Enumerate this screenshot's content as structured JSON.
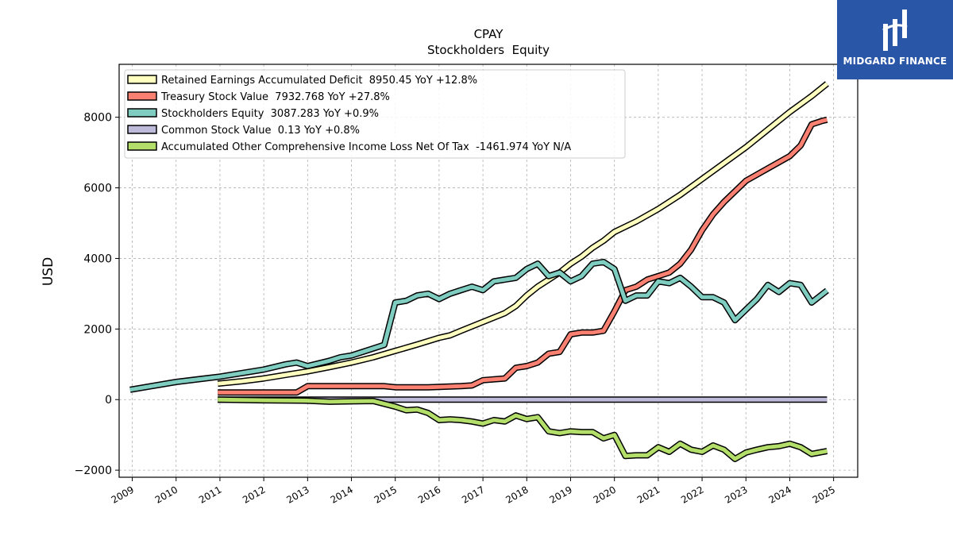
{
  "chart_data": {
    "type": "line",
    "title": "CPAY",
    "subtitle": "Stockholders  Equity",
    "ylabel": "USD",
    "xlabel": "",
    "xlim": [
      2008.7,
      2025.55
    ],
    "ylim": [
      -2200,
      9500
    ],
    "yticks": [
      -2000,
      0,
      2000,
      4000,
      6000,
      8000
    ],
    "ytick_labels": [
      "−2000",
      "0",
      "2000",
      "4000",
      "6000",
      "8000"
    ],
    "xticks": [
      2009,
      2010,
      2011,
      2012,
      2013,
      2014,
      2015,
      2016,
      2017,
      2018,
      2019,
      2020,
      2021,
      2022,
      2023,
      2024,
      2025
    ],
    "xtick_labels": [
      "2009",
      "2010",
      "2011",
      "2012",
      "2013",
      "2014",
      "2015",
      "2016",
      "2017",
      "2018",
      "2019",
      "2020",
      "2021",
      "2022",
      "2023",
      "2024",
      "2025"
    ],
    "grid": true,
    "legend_position": "top-left",
    "series": [
      {
        "name": "Retained Earnings Accumulated Deficit  8950.45 YoY +12.8%",
        "color": "#ffffc0",
        "x": [
          2010.95,
          2011.5,
          2012.0,
          2012.5,
          2013.0,
          2013.5,
          2014.0,
          2014.5,
          2015.0,
          2015.5,
          2016.0,
          2016.25,
          2016.5,
          2017.0,
          2017.5,
          2017.75,
          2018.0,
          2018.25,
          2018.5,
          2018.75,
          2019.0,
          2019.25,
          2019.5,
          2019.75,
          2020.0,
          2020.5,
          2021.0,
          2021.5,
          2022.0,
          2022.5,
          2023.0,
          2023.5,
          2024.0,
          2024.5,
          2024.85
        ],
        "y": [
          450,
          520,
          600,
          700,
          800,
          920,
          1050,
          1200,
          1380,
          1560,
          1750,
          1820,
          1950,
          2200,
          2450,
          2650,
          2950,
          3200,
          3400,
          3600,
          3850,
          4050,
          4300,
          4500,
          4750,
          5050,
          5400,
          5800,
          6250,
          6700,
          7150,
          7650,
          8150,
          8600,
          8950
        ]
      },
      {
        "name": "Treasury Stock Value  7932.768 YoY +27.8%",
        "color": "#fa8072",
        "x": [
          2010.95,
          2012.75,
          2013.0,
          2014.75,
          2015.0,
          2015.75,
          2016.0,
          2016.5,
          2016.75,
          2017.0,
          2017.5,
          2017.75,
          2018.0,
          2018.25,
          2018.5,
          2018.75,
          2019.0,
          2019.25,
          2019.5,
          2019.75,
          2020.0,
          2020.25,
          2020.5,
          2020.75,
          2021.0,
          2021.25,
          2021.5,
          2021.75,
          2022.0,
          2022.25,
          2022.5,
          2022.75,
          2023.0,
          2023.5,
          2024.0,
          2024.25,
          2024.5,
          2024.75,
          2024.85
        ],
        "y": [
          200,
          200,
          380,
          380,
          350,
          350,
          360,
          380,
          400,
          550,
          600,
          900,
          950,
          1050,
          1300,
          1350,
          1850,
          1900,
          1900,
          1950,
          2500,
          3100,
          3200,
          3400,
          3500,
          3600,
          3850,
          4250,
          4800,
          5250,
          5600,
          5900,
          6200,
          6550,
          6900,
          7200,
          7800,
          7900,
          7930
        ]
      },
      {
        "name": "Stockholders Equity  3087.283 YoY +0.9%",
        "color": "#7fcdc0",
        "x": [
          2008.95,
          2010.0,
          2011.0,
          2012.0,
          2012.5,
          2012.75,
          2013.0,
          2013.5,
          2013.75,
          2014.0,
          2014.5,
          2014.75,
          2015.0,
          2015.25,
          2015.5,
          2015.75,
          2016.0,
          2016.25,
          2016.5,
          2016.75,
          2017.0,
          2017.25,
          2017.5,
          2017.75,
          2018.0,
          2018.25,
          2018.5,
          2018.75,
          2019.0,
          2019.25,
          2019.5,
          2019.75,
          2020.0,
          2020.25,
          2020.5,
          2020.75,
          2021.0,
          2021.25,
          2021.5,
          2021.75,
          2022.0,
          2022.25,
          2022.5,
          2022.75,
          2023.0,
          2023.25,
          2023.5,
          2023.75,
          2024.0,
          2024.25,
          2024.5,
          2024.85
        ],
        "y": [
          280,
          500,
          650,
          850,
          1000,
          1050,
          950,
          1100,
          1200,
          1250,
          1450,
          1550,
          2750,
          2800,
          2950,
          3000,
          2850,
          3000,
          3100,
          3200,
          3100,
          3350,
          3400,
          3450,
          3700,
          3850,
          3500,
          3600,
          3350,
          3500,
          3850,
          3900,
          3700,
          2800,
          2950,
          2950,
          3350,
          3300,
          3450,
          3200,
          2900,
          2900,
          2750,
          2250,
          2550,
          2850,
          3250,
          3050,
          3300,
          3250,
          2750,
          3090
        ]
      },
      {
        "name": "Common Stock Value  0.13 YoY +0.8%",
        "color": "#bebada",
        "x": [
          2010.95,
          2024.85
        ],
        "y": [
          0.13,
          0.13
        ]
      },
      {
        "name": "Accumulated Other Comprehensive Income Loss Net Of Tax  -1461.974 YoY N/A",
        "color": "#b3de69",
        "x": [
          2010.95,
          2012.0,
          2013.0,
          2013.5,
          2014.0,
          2014.5,
          2015.0,
          2015.25,
          2015.5,
          2015.75,
          2016.0,
          2016.25,
          2016.5,
          2016.75,
          2017.0,
          2017.25,
          2017.5,
          2017.75,
          2018.0,
          2018.25,
          2018.5,
          2018.75,
          2019.0,
          2019.25,
          2019.5,
          2019.75,
          2020.0,
          2020.25,
          2020.5,
          2020.75,
          2021.0,
          2021.25,
          2021.5,
          2021.75,
          2022.0,
          2022.25,
          2022.5,
          2022.75,
          2023.0,
          2023.25,
          2023.5,
          2023.75,
          2024.0,
          2024.25,
          2024.5,
          2024.85
        ],
        "y": [
          0,
          -20,
          -30,
          -60,
          -50,
          -40,
          -200,
          -300,
          -280,
          -380,
          -580,
          -560,
          -580,
          -620,
          -680,
          -580,
          -620,
          -450,
          -550,
          -500,
          -900,
          -950,
          -900,
          -920,
          -920,
          -1100,
          -1000,
          -1600,
          -1580,
          -1580,
          -1350,
          -1480,
          -1250,
          -1420,
          -1480,
          -1300,
          -1420,
          -1680,
          -1500,
          -1420,
          -1350,
          -1320,
          -1250,
          -1350,
          -1540,
          -1460
        ]
      }
    ]
  },
  "branding": {
    "logo_text": "MIDGARD FINANCE",
    "logo_color": "#2a56a8"
  }
}
